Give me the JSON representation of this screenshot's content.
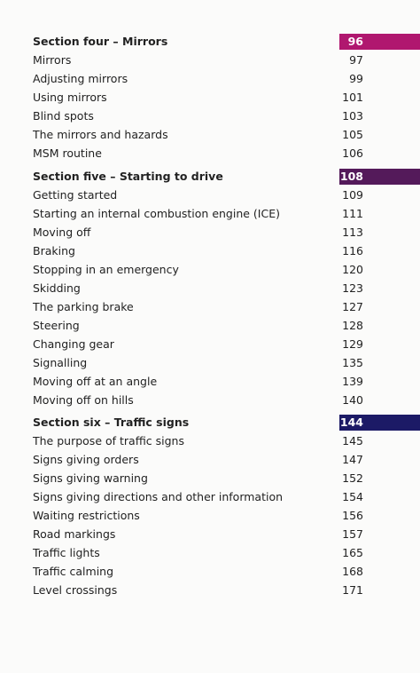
{
  "sections": [
    {
      "title": "Section four – Mirrors",
      "page": 96,
      "color": "#b0176f",
      "entries": [
        {
          "text": "Mirrors",
          "page": 97
        },
        {
          "text": "Adjusting mirrors",
          "page": 99
        },
        {
          "text": "Using mirrors",
          "page": 101
        },
        {
          "text": "Blind spots",
          "page": 103
        },
        {
          "text": "The mirrors and hazards",
          "page": 105
        },
        {
          "text": "MSM routine",
          "page": 106
        }
      ]
    },
    {
      "title": "Section five – Starting to drive",
      "page": 108,
      "color": "#541a5a",
      "entries": [
        {
          "text": "Getting started",
          "page": 109
        },
        {
          "text": "Starting an internal combustion engine (ICE)",
          "page": 111
        },
        {
          "text": "Moving off",
          "page": 113
        },
        {
          "text": "Braking",
          "page": 116
        },
        {
          "text": "Stopping in an emergency",
          "page": 120
        },
        {
          "text": "Skidding",
          "page": 123
        },
        {
          "text": "The parking brake",
          "page": 127
        },
        {
          "text": "Steering",
          "page": 128
        },
        {
          "text": "Changing gear",
          "page": 129
        },
        {
          "text": "Signalling",
          "page": 135
        },
        {
          "text": "Moving off at an angle",
          "page": 139
        },
        {
          "text": "Moving off on hills",
          "page": 140
        }
      ]
    },
    {
      "title": "Section six – Traffic signs",
      "page": 144,
      "color": "#1c1a66",
      "entries": [
        {
          "text": "The purpose of traffic signs",
          "page": 145
        },
        {
          "text": "Signs giving orders",
          "page": 147
        },
        {
          "text": "Signs giving warning",
          "page": 152
        },
        {
          "text": "Signs giving directions and other information",
          "page": 154
        },
        {
          "text": "Waiting restrictions",
          "page": 156
        },
        {
          "text": "Road markings",
          "page": 157
        },
        {
          "text": "Traffic lights",
          "page": 165
        },
        {
          "text": "Traffic calming",
          "page": 168
        },
        {
          "text": "Level crossings",
          "page": 171
        }
      ]
    }
  ]
}
